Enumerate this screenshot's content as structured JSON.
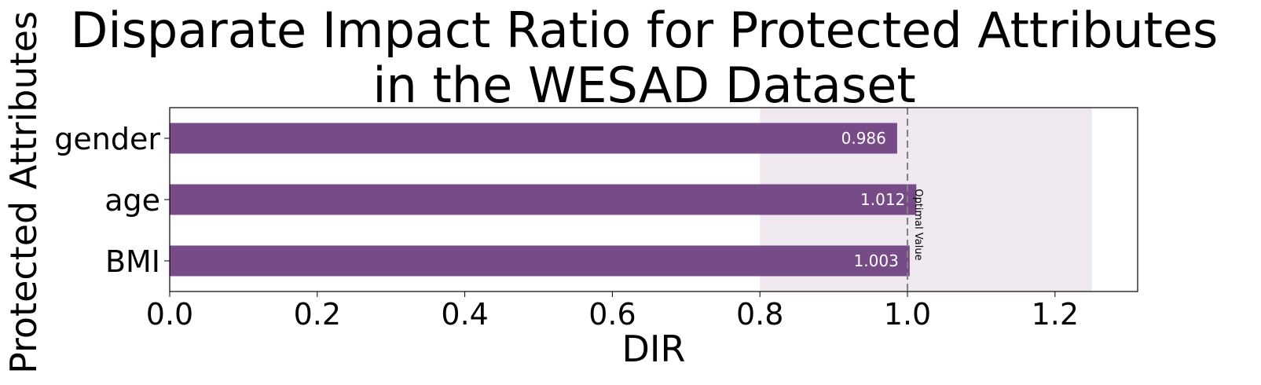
{
  "chart_data": {
    "type": "bar",
    "orientation": "horizontal",
    "title": "Disparate Impact Ratio for Protected Attributes\nin the WESAD Dataset",
    "xlabel": "DIR",
    "ylabel": "Protected Attributes",
    "categories": [
      "gender",
      "age",
      "BMI"
    ],
    "values": [
      0.986,
      1.012,
      1.003
    ],
    "value_labels": [
      "0.986",
      "1.012",
      "1.003"
    ],
    "xlim": [
      0.0,
      1.312
    ],
    "xticks": [
      0.0,
      0.2,
      0.4,
      0.6,
      0.8,
      1.0,
      1.2
    ],
    "xtick_labels": [
      "0.0",
      "0.2",
      "0.4",
      "0.6",
      "0.8",
      "1.0",
      "1.2"
    ],
    "fair_band": [
      0.8,
      1.25
    ],
    "reference_line": {
      "value": 1.0,
      "label": "Optimal Value",
      "style": "dashed"
    },
    "grid": false,
    "colors": {
      "bar": "#774a88",
      "band": "#efe9ef",
      "reference_line": "#808080",
      "value_label": "#ffffff"
    }
  }
}
